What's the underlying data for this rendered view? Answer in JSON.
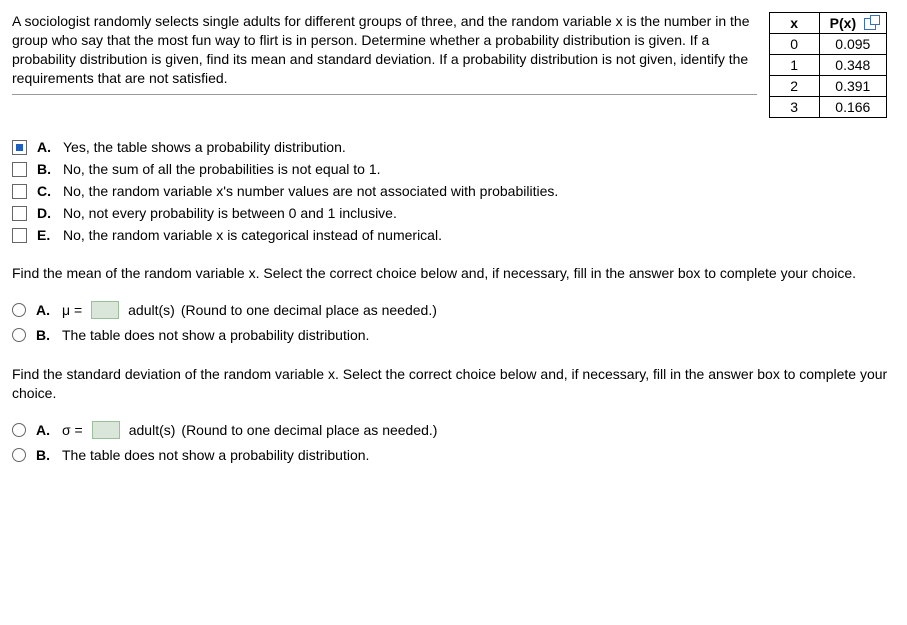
{
  "problem": {
    "text": "A sociologist randomly selects single adults for different groups of three, and the random variable x is the number in the group who say that the most fun way to flirt is in person. Determine whether a probability distribution is given. If a probability distribution is given, find its mean and standard deviation. If a probability distribution is not given, identify the requirements that are not satisfied."
  },
  "table": {
    "headers": {
      "x": "x",
      "px": "P(x)"
    },
    "rows": [
      {
        "x": "0",
        "px": "0.095"
      },
      {
        "x": "1",
        "px": "0.348"
      },
      {
        "x": "2",
        "px": "0.391"
      },
      {
        "x": "3",
        "px": "0.166"
      }
    ]
  },
  "multi_choice": {
    "items": [
      {
        "letter": "A.",
        "text": "Yes, the table shows a probability distribution.",
        "checked": true
      },
      {
        "letter": "B.",
        "text": "No, the sum of all the probabilities is not equal to 1.",
        "checked": false
      },
      {
        "letter": "C.",
        "text": "No, the random variable x's number values are not associated with probabilities.",
        "checked": false
      },
      {
        "letter": "D.",
        "text": "No, not every probability is between 0 and 1 inclusive.",
        "checked": false
      },
      {
        "letter": "E.",
        "text": "No, the random variable x is categorical instead of numerical.",
        "checked": false
      }
    ]
  },
  "mean_section": {
    "prompt": "Find the mean of the random variable x. Select the correct choice below and, if necessary, fill in the answer box to complete your choice.",
    "options": {
      "a": {
        "letter": "A.",
        "prefix": "μ =",
        "suffix": "adult(s)",
        "hint": "(Round to one decimal place as needed.)"
      },
      "b": {
        "letter": "B.",
        "text": "The table does not show a probability distribution."
      }
    }
  },
  "sd_section": {
    "prompt": "Find the standard deviation of the random variable x. Select the correct choice below and, if necessary, fill in the answer box to complete your choice.",
    "options": {
      "a": {
        "letter": "A.",
        "prefix": "σ =",
        "suffix": "adult(s)",
        "hint": "(Round to one decimal place as needed.)"
      },
      "b": {
        "letter": "B.",
        "text": "The table does not show a probability distribution."
      }
    }
  },
  "colors": {
    "answer_box_bg": "#d9e6d9",
    "answer_box_border": "#9bbf9b",
    "check_fill": "#1f5fbf",
    "border": "#000000"
  }
}
